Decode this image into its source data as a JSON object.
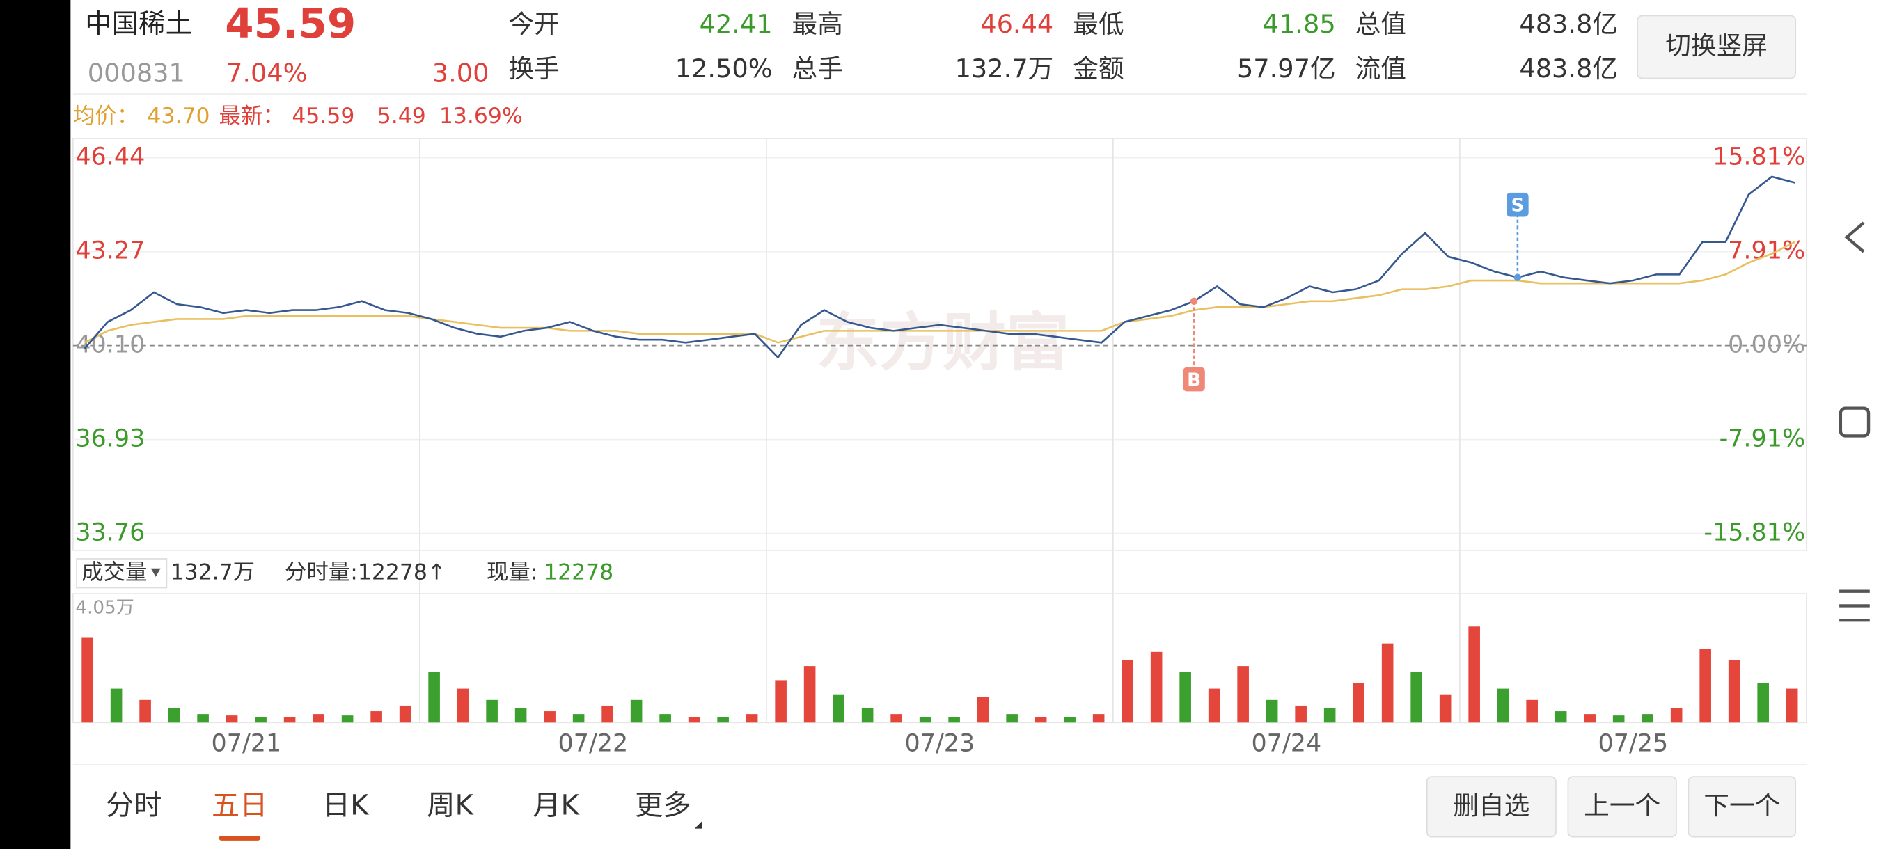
{
  "header": {
    "name": "中国稀土",
    "price": "45.59",
    "code": "000831",
    "change_pct": "7.04%",
    "change": "3.00",
    "quotes": [
      {
        "label": "今开",
        "value": "42.41",
        "color": "#3a9a2a"
      },
      {
        "label": "最高",
        "value": "46.44",
        "color": "#e0403a"
      },
      {
        "label": "最低",
        "value": "41.85",
        "color": "#3a9a2a"
      },
      {
        "label": "总值",
        "value": "483.8亿",
        "color": "#333333"
      },
      {
        "label": "换手",
        "value": "12.50%",
        "color": "#333333"
      },
      {
        "label": "总手",
        "value": "132.7万",
        "color": "#333333"
      },
      {
        "label": "金额",
        "value": "57.97亿",
        "color": "#333333"
      },
      {
        "label": "流值",
        "value": "483.8亿",
        "color": "#333333"
      }
    ],
    "button": "切换竖屏"
  },
  "info": {
    "avg_label": "均价：",
    "avg": "43.70",
    "last_label": "最新：",
    "last": "45.59",
    "change": "5.49",
    "change_pct": "13.69%"
  },
  "watermark": "东方财富",
  "chart_data": [
    {
      "type": "line",
      "days": [
        "07/21",
        "07/22",
        "07/23",
        "07/24",
        "07/25"
      ],
      "ylim": [
        33.76,
        46.44
      ],
      "yticks": [
        46.44,
        43.27,
        40.1,
        36.93,
        33.76
      ],
      "yticks_labels": [
        "46.44",
        "43.27",
        "40.10",
        "36.93",
        "33.76"
      ],
      "y2lim": [
        -15.81,
        15.81
      ],
      "y2ticks": [
        {
          "value": 15.81,
          "label": "15.81%"
        },
        {
          "value": 7.91,
          "label": "7.91%"
        },
        {
          "value": 0,
          "label": "0.00%"
        },
        {
          "value": -7.91,
          "label": "-7.91%"
        },
        {
          "value": -15.81,
          "label": "-15.81%"
        }
      ],
      "annotations": [
        {
          "text": "B"
        },
        {
          "text": "S"
        }
      ],
      "series": [
        {
          "name": "price",
          "color": "#34588f",
          "values": [
            40.0,
            40.9,
            41.3,
            41.9,
            41.5,
            41.4,
            41.2,
            41.3,
            41.2,
            41.3,
            41.3,
            41.4,
            41.6,
            41.3,
            41.2,
            41.0,
            40.7,
            40.5,
            40.4,
            40.6,
            40.7,
            40.9,
            40.6,
            40.4,
            40.3,
            40.3,
            40.2,
            40.3,
            40.4,
            40.5,
            39.7,
            40.8,
            41.3,
            40.9,
            40.7,
            40.6,
            40.7,
            40.8,
            40.7,
            40.6,
            40.5,
            40.5,
            40.4,
            40.3,
            40.2,
            40.9,
            41.1,
            41.3,
            41.6,
            42.1,
            41.5,
            41.4,
            41.7,
            42.1,
            41.9,
            42.0,
            42.3,
            43.2,
            43.9,
            43.1,
            42.9,
            42.6,
            42.4,
            42.6,
            42.4,
            42.3,
            42.2,
            42.3,
            42.5,
            42.5,
            43.6,
            43.6,
            45.2,
            45.8,
            45.6
          ]
        },
        {
          "name": "avg",
          "color": "#e8c060",
          "values": [
            40.2,
            40.6,
            40.8,
            40.9,
            41.0,
            41.0,
            41.0,
            41.1,
            41.1,
            41.1,
            41.1,
            41.1,
            41.1,
            41.1,
            41.1,
            41.0,
            40.9,
            40.8,
            40.7,
            40.7,
            40.7,
            40.6,
            40.6,
            40.6,
            40.5,
            40.5,
            40.5,
            40.5,
            40.5,
            40.5,
            40.2,
            40.4,
            40.6,
            40.6,
            40.6,
            40.6,
            40.6,
            40.6,
            40.6,
            40.6,
            40.6,
            40.6,
            40.6,
            40.6,
            40.6,
            40.9,
            41.0,
            41.1,
            41.3,
            41.4,
            41.4,
            41.4,
            41.5,
            41.6,
            41.6,
            41.7,
            41.8,
            42.0,
            42.0,
            42.1,
            42.3,
            42.3,
            42.3,
            42.2,
            42.2,
            42.2,
            42.2,
            42.2,
            42.2,
            42.2,
            42.3,
            42.5,
            42.9,
            43.2,
            43.6
          ]
        }
      ]
    },
    {
      "type": "bar",
      "label": "成交量",
      "total": "132.7万",
      "tick_volume": "分时量:12278↑",
      "now_label": "现量:",
      "now": "12278",
      "ylim": [
        0,
        40500
      ],
      "yticks": [
        {
          "value": 40500,
          "label": "4.05万"
        }
      ],
      "values": [
        30000,
        12000,
        8000,
        5000,
        3000,
        2500,
        2000,
        2000,
        3000,
        2500,
        4000,
        6000,
        18000,
        12000,
        8000,
        5000,
        4000,
        3000,
        6000,
        8000,
        3000,
        2000,
        2000,
        3000,
        15000,
        20000,
        10000,
        5000,
        3000,
        2000,
        2000,
        9000,
        3000,
        2000,
        2000,
        3000,
        22000,
        25000,
        18000,
        12000,
        20000,
        8000,
        6000,
        5000,
        14000,
        28000,
        18000,
        10000,
        34000,
        12000,
        8000,
        4000,
        3000,
        2500,
        3000,
        5000,
        26000,
        22000,
        14000,
        12000
      ],
      "colors": [
        "#e4463c",
        "#3ca02e",
        "#e4463c",
        "#3ca02e",
        "#3ca02e",
        "#e4463c",
        "#3ca02e",
        "#e4463c",
        "#e4463c",
        "#3ca02e",
        "#e4463c",
        "#e4463c",
        "#3ca02e",
        "#e4463c",
        "#3ca02e",
        "#3ca02e",
        "#e4463c",
        "#3ca02e",
        "#e4463c",
        "#3ca02e",
        "#3ca02e",
        "#e4463c",
        "#3ca02e",
        "#e4463c",
        "#e4463c",
        "#e4463c",
        "#3ca02e",
        "#3ca02e",
        "#e4463c",
        "#3ca02e",
        "#3ca02e",
        "#e4463c",
        "#3ca02e",
        "#e4463c",
        "#3ca02e",
        "#e4463c",
        "#e4463c",
        "#e4463c",
        "#3ca02e",
        "#e4463c",
        "#e4463c",
        "#3ca02e",
        "#e4463c",
        "#3ca02e",
        "#e4463c",
        "#e4463c",
        "#3ca02e",
        "#e4463c",
        "#e4463c",
        "#3ca02e",
        "#e4463c",
        "#3ca02e",
        "#e4463c",
        "#3ca02e",
        "#3ca02e",
        "#e4463c",
        "#e4463c",
        "#e4463c",
        "#3ca02e",
        "#e4463c"
      ]
    }
  ],
  "tabs": [
    "分时",
    "五日",
    "日K",
    "周K",
    "月K",
    "更多"
  ],
  "buttons": [
    "删自选",
    "上一个",
    "下一个"
  ]
}
